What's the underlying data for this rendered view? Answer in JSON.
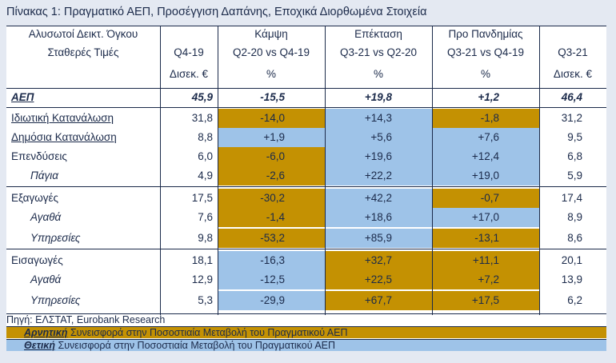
{
  "title": "Πίνακας 1: Πραγματικό ΑΕΠ, Προσέγγιση Δαπάνης, Εποχικά Διορθωμένα Στοιχεία",
  "header": {
    "label": [
      "Αλυσωτοί Δεικτ. Όγκου",
      "Σταθερές Τιμές"
    ],
    "q419": [
      "Q4-19",
      "Δισεκ. €"
    ],
    "kampsi": [
      "Κάμψη",
      "Q2-20 vs Q4-19",
      "%"
    ],
    "epektasi": [
      "Επέκταση",
      "Q3-21 vs Q2-20",
      "%"
    ],
    "pandimia": [
      "Προ Πανδημίας",
      "Q3-21 vs Q4-19",
      "%"
    ],
    "q321": [
      "Q3-21",
      "Δισεκ. €"
    ]
  },
  "rows": [
    {
      "label": "ΑΕΠ",
      "q419": "45,9",
      "kampsi": "-15,5",
      "epektasi": "+19,8",
      "pandimia": "+1,2",
      "q321": "46,4"
    },
    {
      "label": "Ιδιωτική Κατανάλωση",
      "q419": "31,8",
      "kampsi": "-14,0",
      "epektasi": "+14,3",
      "pandimia": "-1,8",
      "q321": "31,2"
    },
    {
      "label": "Δημόσια Κατανάλωση",
      "q419": "8,8",
      "kampsi": "+1,9",
      "epektasi": "+5,6",
      "pandimia": "+7,6",
      "q321": "9,5"
    },
    {
      "label": "Επενδύσεις",
      "q419": "6,0",
      "kampsi": "-6,0",
      "epektasi": "+19,6",
      "pandimia": "+12,4",
      "q321": "6,8"
    },
    {
      "label": "Πάγια",
      "q419": "4,9",
      "kampsi": "-2,6",
      "epektasi": "+22,2",
      "pandimia": "+19,0",
      "q321": "5,9"
    },
    {
      "label": "Εξαγωγές",
      "q419": "17,5",
      "kampsi": "-30,2",
      "epektasi": "+42,2",
      "pandimia": "-0,7",
      "q321": "17,4"
    },
    {
      "label": "Αγαθά",
      "q419": "7,6",
      "kampsi": "-1,4",
      "epektasi": "+18,6",
      "pandimia": "+17,0",
      "q321": "8,9"
    },
    {
      "label": "Υπηρεσίες",
      "q419": "9,8",
      "kampsi": "-53,2",
      "epektasi": "+85,9",
      "pandimia": "-13,1",
      "q321": "8,6"
    },
    {
      "label": "Εισαγωγές",
      "q419": "18,1",
      "kampsi": "-16,3",
      "epektasi": "+32,7",
      "pandimia": "+11,1",
      "q321": "20,1"
    },
    {
      "label": "Αγαθά",
      "q419": "12,9",
      "kampsi": "-12,5",
      "epektasi": "+22,5",
      "pandimia": "+7,2",
      "q321": "13,9"
    },
    {
      "label": "Υπηρεσίες",
      "q419": "5,3",
      "kampsi": "-29,9",
      "epektasi": "+67,7",
      "pandimia": "+17,5",
      "q321": "6,2"
    }
  ],
  "source": "Πηγή: ΕΛΣΤΑΤ, Eurobank Research",
  "legend": {
    "neg_key": "Αρνητική",
    "neg_text": " Συνεισφορά στην Ποσοστιαία Μεταβολή του Πραγματικού ΑΕΠ",
    "pos_key": "Θετική",
    "pos_text": " Συνεισφορά στην Ποσοστιαία Μεταβολή του Πραγματικού ΑΕΠ"
  },
  "colors": {
    "negative": "#c49102",
    "positive": "#9ec3e8",
    "text": "#1b2a4a"
  }
}
